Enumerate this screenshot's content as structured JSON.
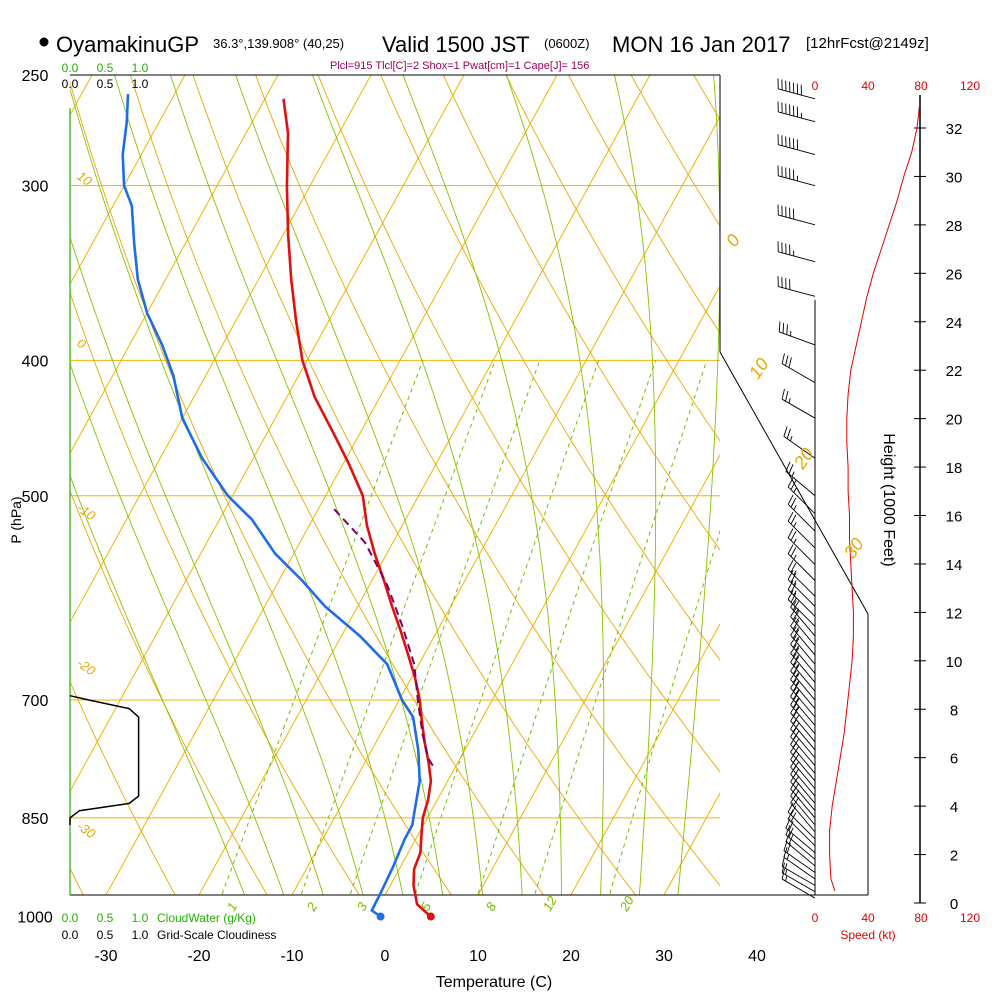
{
  "header": {
    "station": "OyamakinuGP",
    "location": "36.3°,139.908° (40,25)",
    "valid_time": "Valid 1500 JST",
    "utc": "(0600Z)",
    "date": "MON 16 Jan 2017",
    "forecast": "[12hrFcst@2149z]",
    "stats": "Plcl=915 Tlcl[C]=2 Shox=1 Pwat[cm]=1 Cape[J]= 156"
  },
  "colors": {
    "isobar": "#f0b400",
    "dry_adiabat": "#e8a800",
    "moist_adiabat": "#88c000",
    "mixing_ratio": "#7ab800",
    "temperature": "#e01010",
    "dewpoint": "#1e6ce8",
    "parcel": "#800060",
    "cloud": "#22b000",
    "speed": "#e00000",
    "stats": "#a0005a"
  },
  "chart_data": {
    "type": "line",
    "diagram": "skew-T log-p",
    "xlabel": "Temperature (C)",
    "ylabel": "P (hPa)",
    "y2label": "Height (1000 Feet)",
    "x_ticks": [
      "-30",
      "-20",
      "-10",
      "0",
      "10",
      "20",
      "30",
      "40"
    ],
    "pressure_ticks": [
      "250",
      "300",
      "400",
      "500",
      "700",
      "850",
      "1000"
    ],
    "height_ticks": [
      "0",
      "2",
      "4",
      "6",
      "8",
      "10",
      "12",
      "14",
      "16",
      "18",
      "20",
      "22",
      "24",
      "26",
      "28",
      "30",
      "32"
    ],
    "cloudwater": {
      "label": "CloudWater (g/Kg)",
      "ticks": [
        "0.0",
        "0.5",
        "1.0"
      ]
    },
    "cloudiness": {
      "label": "Grid-Scale Cloudiness",
      "ticks": [
        "0.0",
        "0.5",
        "1.0"
      ]
    },
    "speed": {
      "label": "Speed (kt)",
      "ticks": [
        "0",
        "40",
        "80",
        "120"
      ]
    },
    "mixing_ratio_labels": [
      "1",
      "2",
      "3",
      "5",
      "8",
      "12",
      "20"
    ],
    "moist_labels": [
      "0",
      "10",
      "20",
      "30"
    ],
    "dry_labels": [
      "10",
      "0",
      "-10",
      "-20",
      "-30"
    ],
    "series": [
      {
        "name": "Temperature",
        "points": [
          [
            6.2,
            1000
          ],
          [
            4,
            980
          ],
          [
            2.5,
            950
          ],
          [
            1.6,
            925
          ],
          [
            1.3,
            900
          ],
          [
            0.4,
            875
          ],
          [
            -0.5,
            850
          ],
          [
            -1,
            825
          ],
          [
            -1.8,
            800
          ],
          [
            -3.2,
            775
          ],
          [
            -4.8,
            750
          ],
          [
            -6.3,
            725
          ],
          [
            -7.8,
            700
          ],
          [
            -9.6,
            675
          ],
          [
            -11.7,
            650
          ],
          [
            -13.9,
            625
          ],
          [
            -16.3,
            600
          ],
          [
            -18.7,
            575
          ],
          [
            -21.3,
            550
          ],
          [
            -23.8,
            525
          ],
          [
            -26,
            500
          ],
          [
            -29.3,
            475
          ],
          [
            -33,
            450
          ],
          [
            -37,
            425
          ],
          [
            -40.5,
            400
          ],
          [
            -43.5,
            375
          ],
          [
            -46.5,
            350
          ],
          [
            -49.5,
            325
          ],
          [
            -52.5,
            300
          ],
          [
            -55.5,
            275
          ],
          [
            -58,
            260
          ]
        ]
      },
      {
        "name": "Dewpoint",
        "points": [
          [
            0.8,
            1000
          ],
          [
            -0.5,
            990
          ],
          [
            -0.6,
            960
          ],
          [
            -0.8,
            920
          ],
          [
            -1.2,
            880
          ],
          [
            -1.2,
            860
          ],
          [
            -1.8,
            840
          ],
          [
            -3,
            800
          ],
          [
            -5,
            760
          ],
          [
            -7.5,
            720
          ],
          [
            -9.7,
            700
          ],
          [
            -13.4,
            660
          ],
          [
            -18,
            630
          ],
          [
            -23.5,
            600
          ],
          [
            -27.5,
            575
          ],
          [
            -32,
            550
          ],
          [
            -36.5,
            520
          ],
          [
            -40.5,
            500
          ],
          [
            -45.5,
            470
          ],
          [
            -50,
            440
          ],
          [
            -53.5,
            410
          ],
          [
            -56.5,
            390
          ],
          [
            -60,
            370
          ],
          [
            -63,
            350
          ],
          [
            -65.5,
            330
          ],
          [
            -68,
            310
          ],
          [
            -70,
            300
          ],
          [
            -72,
            285
          ],
          [
            -73.5,
            270
          ],
          [
            -75,
            258
          ]
        ]
      },
      {
        "name": "Parcel",
        "points": [
          [
            -2.5,
            780
          ],
          [
            -3.5,
            770
          ],
          [
            -5.5,
            740
          ],
          [
            -8,
            700
          ],
          [
            -10.5,
            660
          ],
          [
            -14,
            620
          ],
          [
            -18,
            580
          ],
          [
            -23,
            540
          ],
          [
            -28.5,
            510
          ]
        ]
      }
    ],
    "cloud_water": [
      [
        0,
        1000
      ],
      [
        0,
        850
      ],
      [
        0,
        700
      ],
      [
        0,
        260
      ]
    ],
    "cloudiness_profile": [
      [
        0,
        860
      ],
      [
        0,
        850
      ],
      [
        0.1,
        840
      ],
      [
        0.63,
        830
      ],
      [
        0.73,
        820
      ],
      [
        0.73,
        800
      ],
      [
        0.73,
        780
      ],
      [
        0.73,
        750
      ],
      [
        0.73,
        730
      ],
      [
        0.73,
        720
      ],
      [
        0.63,
        710
      ],
      [
        0.2,
        700
      ],
      [
        0,
        695
      ]
    ],
    "wind_speed_profile": [
      [
        0.5,
        15
      ],
      [
        1,
        12
      ],
      [
        2,
        11
      ],
      [
        3,
        11
      ],
      [
        4,
        13
      ],
      [
        5,
        16
      ],
      [
        6,
        19
      ],
      [
        7,
        22
      ],
      [
        8,
        24
      ],
      [
        9,
        26
      ],
      [
        10,
        28
      ],
      [
        11,
        29
      ],
      [
        12,
        29
      ],
      [
        13,
        28
      ],
      [
        14,
        27
      ],
      [
        15,
        26
      ],
      [
        16,
        26
      ],
      [
        17,
        25
      ],
      [
        18,
        25
      ],
      [
        19,
        24
      ],
      [
        20,
        24
      ],
      [
        21,
        25
      ],
      [
        22,
        27
      ],
      [
        23,
        31
      ],
      [
        24,
        35
      ],
      [
        25,
        39
      ],
      [
        26,
        44
      ],
      [
        27,
        50
      ],
      [
        28,
        56
      ],
      [
        29,
        62
      ],
      [
        30,
        67
      ],
      [
        31,
        73
      ],
      [
        32,
        77
      ],
      [
        33,
        79
      ]
    ],
    "wind_barbs": [
      {
        "p": 1000,
        "dir": 290,
        "spd": 15
      },
      {
        "p": 990,
        "dir": 295,
        "spd": 15
      },
      {
        "p": 980,
        "dir": 295,
        "spd": 15
      },
      {
        "p": 970,
        "dir": 300,
        "spd": 15
      },
      {
        "p": 960,
        "dir": 300,
        "spd": 15
      },
      {
        "p": 950,
        "dir": 300,
        "spd": 15
      },
      {
        "p": 940,
        "dir": 305,
        "spd": 15
      },
      {
        "p": 930,
        "dir": 305,
        "spd": 20
      },
      {
        "p": 920,
        "dir": 310,
        "spd": 20
      },
      {
        "p": 910,
        "dir": 310,
        "spd": 20
      },
      {
        "p": 900,
        "dir": 310,
        "spd": 20
      },
      {
        "p": 890,
        "dir": 315,
        "spd": 20
      },
      {
        "p": 880,
        "dir": 315,
        "spd": 20
      },
      {
        "p": 870,
        "dir": 320,
        "spd": 20
      },
      {
        "p": 860,
        "dir": 320,
        "spd": 20
      },
      {
        "p": 850,
        "dir": 320,
        "spd": 20
      },
      {
        "p": 840,
        "dir": 320,
        "spd": 20
      },
      {
        "p": 830,
        "dir": 320,
        "spd": 20
      },
      {
        "p": 820,
        "dir": 320,
        "spd": 20
      },
      {
        "p": 810,
        "dir": 320,
        "spd": 20
      },
      {
        "p": 800,
        "dir": 320,
        "spd": 20
      },
      {
        "p": 790,
        "dir": 320,
        "spd": 20
      },
      {
        "p": 780,
        "dir": 320,
        "spd": 20
      },
      {
        "p": 770,
        "dir": 320,
        "spd": 20
      },
      {
        "p": 760,
        "dir": 320,
        "spd": 20
      },
      {
        "p": 750,
        "dir": 320,
        "spd": 20
      },
      {
        "p": 740,
        "dir": 320,
        "spd": 25
      },
      {
        "p": 730,
        "dir": 320,
        "spd": 25
      },
      {
        "p": 720,
        "dir": 320,
        "spd": 25
      },
      {
        "p": 710,
        "dir": 320,
        "spd": 25
      },
      {
        "p": 700,
        "dir": 320,
        "spd": 25
      },
      {
        "p": 690,
        "dir": 320,
        "spd": 25
      },
      {
        "p": 680,
        "dir": 320,
        "spd": 25
      },
      {
        "p": 670,
        "dir": 320,
        "spd": 25
      },
      {
        "p": 660,
        "dir": 320,
        "spd": 25
      },
      {
        "p": 650,
        "dir": 320,
        "spd": 25
      },
      {
        "p": 640,
        "dir": 320,
        "spd": 25
      },
      {
        "p": 630,
        "dir": 320,
        "spd": 25
      },
      {
        "p": 620,
        "dir": 315,
        "spd": 25
      },
      {
        "p": 610,
        "dir": 315,
        "spd": 25
      },
      {
        "p": 600,
        "dir": 315,
        "spd": 25
      },
      {
        "p": 590,
        "dir": 315,
        "spd": 25
      },
      {
        "p": 575,
        "dir": 315,
        "spd": 25
      },
      {
        "p": 560,
        "dir": 315,
        "spd": 25
      },
      {
        "p": 545,
        "dir": 315,
        "spd": 25
      },
      {
        "p": 530,
        "dir": 315,
        "spd": 25
      },
      {
        "p": 515,
        "dir": 315,
        "spd": 25
      },
      {
        "p": 500,
        "dir": 310,
        "spd": 25
      },
      {
        "p": 470,
        "dir": 305,
        "spd": 25
      },
      {
        "p": 440,
        "dir": 300,
        "spd": 25
      },
      {
        "p": 415,
        "dir": 300,
        "spd": 30
      },
      {
        "p": 390,
        "dir": 290,
        "spd": 35
      },
      {
        "p": 360,
        "dir": 285,
        "spd": 40
      },
      {
        "p": 340,
        "dir": 285,
        "spd": 45
      },
      {
        "p": 320,
        "dir": 285,
        "spd": 50
      },
      {
        "p": 300,
        "dir": 285,
        "spd": 55
      },
      {
        "p": 285,
        "dir": 285,
        "spd": 60
      },
      {
        "p": 270,
        "dir": 285,
        "spd": 65
      },
      {
        "p": 260,
        "dir": 285,
        "spd": 70
      }
    ]
  }
}
